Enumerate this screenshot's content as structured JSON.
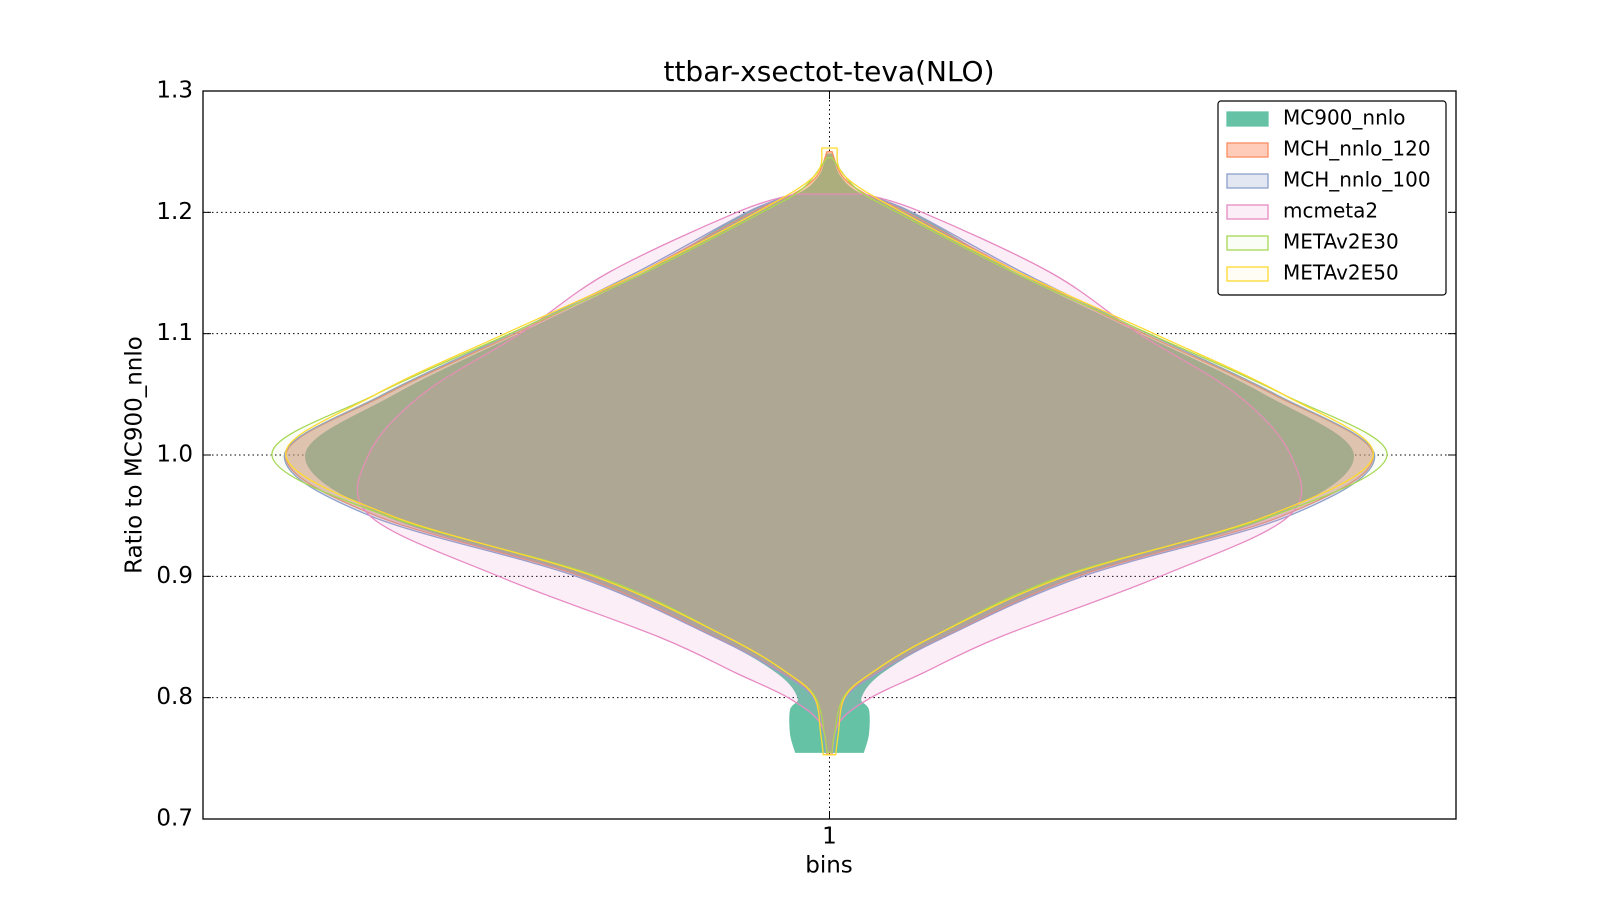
{
  "chart_data": {
    "type": "violin",
    "title": "ttbar-xsectot-teva(NLO)",
    "xlabel": "bins",
    "ylabel": "Ratio to MC900_nnlo",
    "categories": [
      "1"
    ],
    "ylim": [
      0.7,
      1.3
    ],
    "yticks": [
      0.7,
      0.8,
      0.9,
      {
        "value": 1,
        "label": "1.0"
      },
      1.1,
      1.2,
      1.3
    ],
    "grid": true,
    "legend": "upper right",
    "series": [
      {
        "name": "MC900_nnlo",
        "color": "#66c2a5",
        "fill_opacity": 1,
        "y": [
          0.755,
          0.77,
          0.79,
          0.8,
          0.82,
          0.85,
          0.9,
          0.95,
          1.0,
          1.05,
          1.1,
          1.15,
          1.2,
          1.215,
          1.23,
          1.248
        ],
        "halfwidth": [
          0.027,
          0.031,
          0.031,
          0.025,
          0.041,
          0.091,
          0.198,
          0.354,
          0.418,
          0.346,
          0.247,
          0.148,
          0.066,
          0.025,
          0.008,
          0.002
        ]
      },
      {
        "name": "MCH_nnlo_120",
        "color": "#fc8d62",
        "fill_opacity": 0.45,
        "y": [
          0.753,
          0.77,
          0.8,
          0.82,
          0.85,
          0.9,
          0.95,
          1.0,
          1.05,
          1.1,
          1.15,
          1.2,
          1.215,
          1.23,
          1.25
        ],
        "halfwidth": [
          0.002,
          0.004,
          0.012,
          0.037,
          0.091,
          0.198,
          0.362,
          0.434,
          0.354,
          0.251,
          0.152,
          0.062,
          0.029,
          0.01,
          0.002
        ]
      },
      {
        "name": "MCH_nnlo_100",
        "color": "#8da0cb",
        "fill_opacity": 0.25,
        "y": [
          0.755,
          0.77,
          0.8,
          0.82,
          0.85,
          0.9,
          0.95,
          1.0,
          1.05,
          1.1,
          1.15,
          1.2,
          1.215
        ],
        "halfwidth": [
          0.003,
          0.005,
          0.013,
          0.038,
          0.092,
          0.202,
          0.367,
          0.435,
          0.356,
          0.254,
          0.155,
          0.066,
          0.028
        ]
      },
      {
        "name": "mcmeta2",
        "color": "#e78ac3",
        "fill_opacity": 0.15,
        "y": [
          0.755,
          0.78,
          0.8,
          0.82,
          0.85,
          0.9,
          0.95,
          1.0,
          1.05,
          1.1,
          1.15,
          1.2,
          1.215
        ],
        "halfwidth": [
          0.002,
          0.008,
          0.033,
          0.074,
          0.136,
          0.264,
          0.367,
          0.368,
          0.325,
          0.247,
          0.177,
          0.074,
          0.028
        ]
      },
      {
        "name": "METAv2E30",
        "color": "#a6d854",
        "fill_opacity": 0.05,
        "y": [
          0.755,
          0.77,
          0.8,
          0.82,
          0.85,
          0.9,
          0.95,
          1.0,
          1.05,
          1.1,
          1.15,
          1.2,
          1.22,
          1.245
        ],
        "halfwidth": [
          0.002,
          0.004,
          0.011,
          0.033,
          0.082,
          0.185,
          0.354,
          0.445,
          0.362,
          0.255,
          0.148,
          0.054,
          0.021,
          0.002
        ]
      },
      {
        "name": "METAv2E50",
        "color": "#ffd92f",
        "fill_opacity": 0.05,
        "y": [
          0.753,
          0.77,
          0.8,
          0.82,
          0.85,
          0.9,
          0.95,
          1.0,
          1.05,
          1.1,
          1.15,
          1.2,
          1.23,
          1.253
        ],
        "halfwidth": [
          0.005,
          0.007,
          0.012,
          0.033,
          0.082,
          0.188,
          0.35,
          0.434,
          0.362,
          0.259,
          0.152,
          0.058,
          0.012,
          0.006
        ]
      }
    ]
  }
}
